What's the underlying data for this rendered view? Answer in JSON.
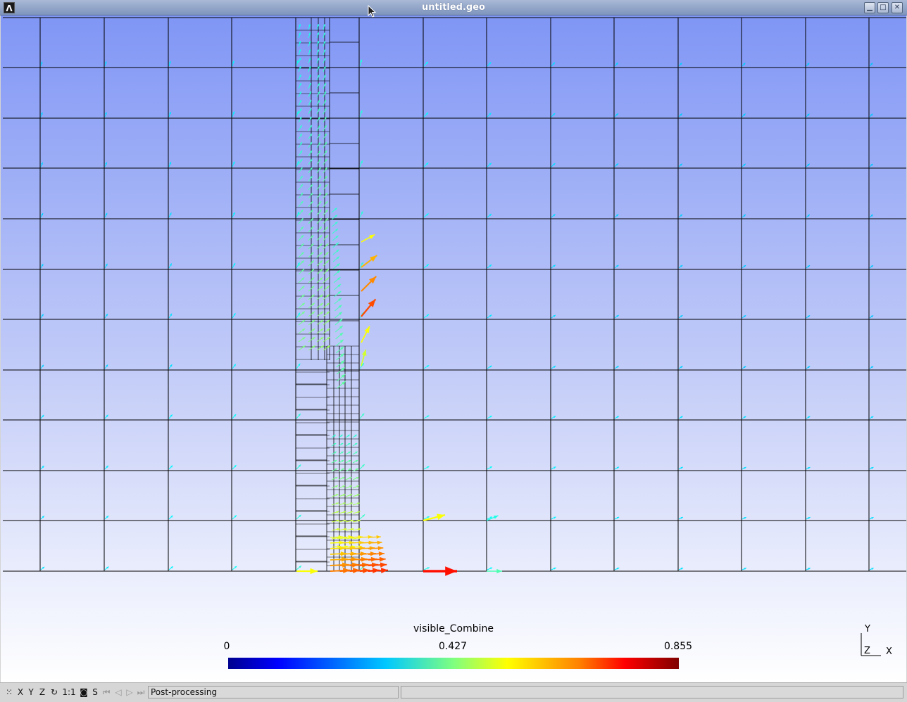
{
  "window": {
    "title": "untitled.geo",
    "logo_glyph": "Λ",
    "controls": [
      {
        "name": "minimize",
        "glyph": "▁"
      },
      {
        "name": "maximize",
        "glyph": "□"
      },
      {
        "name": "close",
        "glyph": "✕"
      }
    ]
  },
  "view": {
    "background_top": "#8096f5",
    "background_bottom": "#ffffff",
    "mesh_color": "#000000"
  },
  "colorbar": {
    "title": "visible_Combine",
    "min_label": "0",
    "mid_label": "0.427",
    "max_label": "0.855",
    "colormap": "jet"
  },
  "axes": {
    "y_label": "Y",
    "z_label": "Z",
    "x_label": "X"
  },
  "statusbar": {
    "buttons": [
      {
        "name": "cursor-mode",
        "label": "⁙",
        "dim": false
      },
      {
        "name": "x-view",
        "label": "X",
        "dim": false
      },
      {
        "name": "y-view",
        "label": "Y",
        "dim": false
      },
      {
        "name": "z-view",
        "label": "Z",
        "dim": false
      },
      {
        "name": "rotate",
        "label": "↻",
        "dim": false
      },
      {
        "name": "scale-1to1",
        "label": "1:1",
        "dim": false
      },
      {
        "name": "projection",
        "label": "◙",
        "dim": false
      },
      {
        "name": "selection",
        "label": "S",
        "dim": false
      },
      {
        "name": "first-step",
        "label": "⏮",
        "dim": true
      },
      {
        "name": "prev-step",
        "label": "◁",
        "dim": true
      },
      {
        "name": "play",
        "label": "▷",
        "dim": true
      },
      {
        "name": "last-step",
        "label": "⏭",
        "dim": true
      }
    ],
    "message": "Post-processing"
  }
}
